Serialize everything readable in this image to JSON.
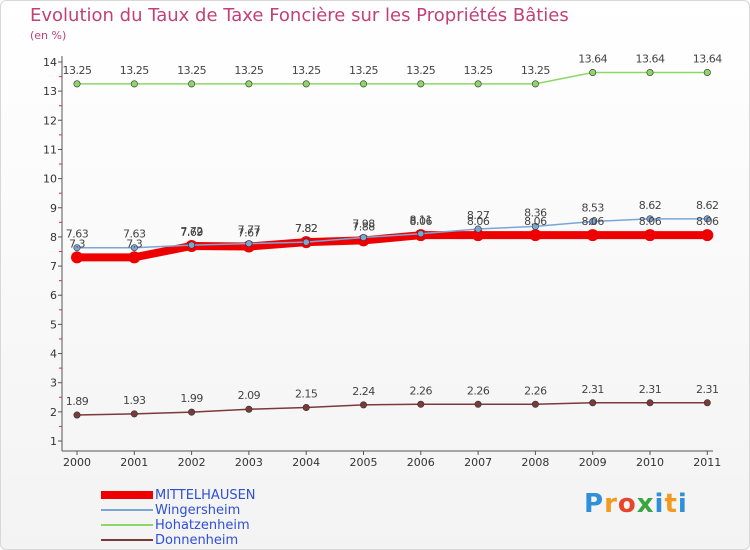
{
  "title": "Evolution du Taux de Taxe Foncière sur les Propriétés Bâties",
  "unit": "(en %)",
  "logo": {
    "text": "Proxiti",
    "letters": [
      "P",
      "r",
      "o",
      "x",
      "i",
      "t",
      "i"
    ],
    "colors": [
      "#2f8fd8",
      "#f29a1f",
      "#e8442b",
      "#3aa641",
      "#2f8fd8",
      "#f29a1f",
      "#2f8fd8"
    ]
  },
  "chart_data": {
    "type": "line",
    "title": "Evolution du Taux de Taxe Foncière sur les Propriétés Bâties",
    "ylabel": "(en %)",
    "xlabel": "",
    "ylim": [
      1,
      14
    ],
    "yticks": [
      "1",
      "2",
      "3",
      "4",
      "5",
      "6",
      "7",
      "8",
      "9",
      "10",
      "11",
      "12",
      "13",
      "14"
    ],
    "categories": [
      "2000",
      "2001",
      "2002",
      "2003",
      "2004",
      "2005",
      "2006",
      "2007",
      "2008",
      "2009",
      "2010",
      "2011"
    ],
    "series": [
      {
        "name": "MITTELHAUSEN",
        "color": "#ee0000",
        "values": [
          7.3,
          7.3,
          7.69,
          7.67,
          7.82,
          7.88,
          8.06,
          8.06,
          8.06,
          8.06,
          8.06,
          8.06
        ],
        "labels": [
          "7.3",
          "7.3",
          "7.69",
          "7.67",
          "7.82",
          "7.88",
          "8.06",
          "8.06",
          "8.06",
          "8.06",
          "8.06",
          "8.06"
        ]
      },
      {
        "name": "Wingersheim",
        "color": "#7aa6d6",
        "values": [
          7.63,
          7.63,
          7.72,
          7.77,
          7.82,
          7.98,
          8.11,
          8.27,
          8.36,
          8.53,
          8.62,
          8.62
        ],
        "labels": [
          "7.63",
          "7.63",
          "7.72",
          "7.77",
          "7.82",
          "7.98",
          "8.11",
          "8.27",
          "8.36",
          "8.53",
          "8.62",
          "8.62"
        ]
      },
      {
        "name": "Hohatzenheim",
        "color": "#8fd66a",
        "values": [
          13.25,
          13.25,
          13.25,
          13.25,
          13.25,
          13.25,
          13.25,
          13.25,
          13.25,
          13.64,
          13.64,
          13.64
        ],
        "labels": [
          "13.25",
          "13.25",
          "13.25",
          "13.25",
          "13.25",
          "13.25",
          "13.25",
          "13.25",
          "13.25",
          "13.64",
          "13.64",
          "13.64"
        ]
      },
      {
        "name": "Donnenheim",
        "color": "#7a3a3a",
        "values": [
          1.89,
          1.93,
          1.99,
          2.09,
          2.15,
          2.24,
          2.26,
          2.26,
          2.26,
          2.31,
          2.31,
          2.31
        ],
        "labels": [
          "1.89",
          "1.93",
          "1.99",
          "2.09",
          "2.15",
          "2.24",
          "2.26",
          "2.26",
          "2.26",
          "2.31",
          "2.31",
          "2.31"
        ]
      }
    ],
    "legend": [
      "MITTELHAUSEN",
      "Wingersheim",
      "Hohatzenheim",
      "Donnenheim"
    ],
    "legend_position": "bottom-left",
    "grid": false
  }
}
